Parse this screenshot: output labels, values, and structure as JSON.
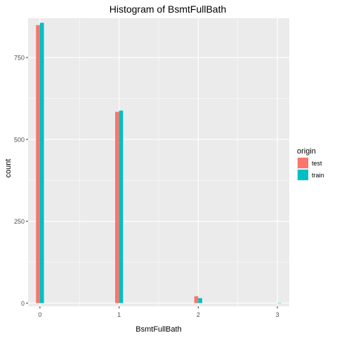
{
  "chart_data": {
    "type": "bar",
    "title": "Histogram of BsmtFullBath",
    "xlabel": "BsmtFullBath",
    "ylabel": "count",
    "x": [
      0,
      1,
      2,
      3
    ],
    "xlim": [
      -0.15,
      3.15
    ],
    "ylim": [
      -10,
      870
    ],
    "yticks": [
      0,
      250,
      500,
      750
    ],
    "xticks": [
      0,
      1,
      2,
      3
    ],
    "bar_width": 0.05,
    "grid": true,
    "legend_position": "right",
    "legend_title": "origin",
    "series": [
      {
        "name": "test",
        "color": "#F8766D",
        "values": [
          849,
          584,
          21,
          0
        ]
      },
      {
        "name": "train",
        "color": "#00BFC4",
        "values": [
          856,
          588,
          15,
          1
        ]
      }
    ]
  }
}
